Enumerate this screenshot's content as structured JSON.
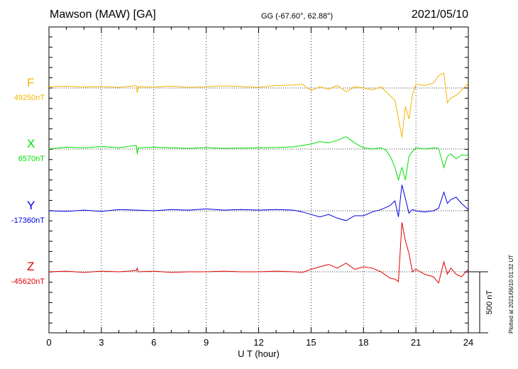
{
  "header": {
    "station": "Mawson (MAW)  [GA]",
    "coords": "GG (-67.60°,  62.88°)",
    "date": "2021/05/10",
    "plotted": "Plotted at 2021/06/10 01:32 UT"
  },
  "chart_data": {
    "type": "line",
    "xlabel": "U T (hour)",
    "xlim": [
      0,
      24
    ],
    "xticks": [
      0,
      3,
      6,
      9,
      12,
      15,
      18,
      21,
      24
    ],
    "scale_label": "500 nT",
    "scale_nT": 500,
    "series": [
      {
        "name": "F",
        "base_label": "49250nT",
        "color": "#f5b400",
        "slot": 0,
        "points": [
          [
            0,
            10
          ],
          [
            1,
            15
          ],
          [
            2,
            8
          ],
          [
            3,
            12
          ],
          [
            4,
            5
          ],
          [
            5,
            20
          ],
          [
            5.05,
            -40
          ],
          [
            5.1,
            10
          ],
          [
            6,
            8
          ],
          [
            7,
            15
          ],
          [
            8,
            5
          ],
          [
            9,
            10
          ],
          [
            10,
            18
          ],
          [
            11,
            12
          ],
          [
            12,
            5
          ],
          [
            13,
            20
          ],
          [
            14,
            25
          ],
          [
            14.5,
            30
          ],
          [
            15,
            -20
          ],
          [
            15.5,
            10
          ],
          [
            16,
            -10
          ],
          [
            16.5,
            20
          ],
          [
            17,
            -30
          ],
          [
            17.5,
            10
          ],
          [
            18,
            0
          ],
          [
            18.5,
            -15
          ],
          [
            19,
            10
          ],
          [
            19.5,
            -60
          ],
          [
            19.8,
            -100
          ],
          [
            20,
            -250
          ],
          [
            20.2,
            -400
          ],
          [
            20.4,
            -150
          ],
          [
            20.6,
            -250
          ],
          [
            20.8,
            -60
          ],
          [
            21,
            30
          ],
          [
            21.5,
            20
          ],
          [
            22,
            40
          ],
          [
            22.3,
            100
          ],
          [
            22.6,
            120
          ],
          [
            22.8,
            -120
          ],
          [
            23,
            -80
          ],
          [
            23.3,
            -60
          ],
          [
            23.6,
            -20
          ],
          [
            24,
            40
          ]
        ]
      },
      {
        "name": "X",
        "base_label": "6570nT",
        "color": "#00e000",
        "slot": 1,
        "points": [
          [
            0,
            0
          ],
          [
            1,
            15
          ],
          [
            2,
            10
          ],
          [
            3,
            20
          ],
          [
            4,
            10
          ],
          [
            5,
            30
          ],
          [
            5.05,
            -40
          ],
          [
            5.1,
            10
          ],
          [
            6,
            15
          ],
          [
            7,
            10
          ],
          [
            8,
            5
          ],
          [
            9,
            12
          ],
          [
            10,
            5
          ],
          [
            11,
            8
          ],
          [
            12,
            10
          ],
          [
            13,
            12
          ],
          [
            14,
            18
          ],
          [
            15,
            40
          ],
          [
            15.5,
            60
          ],
          [
            16,
            50
          ],
          [
            16.5,
            70
          ],
          [
            17,
            100
          ],
          [
            17.3,
            70
          ],
          [
            17.6,
            40
          ],
          [
            18,
            10
          ],
          [
            18.5,
            0
          ],
          [
            19,
            10
          ],
          [
            19.3,
            -10
          ],
          [
            19.6,
            -80
          ],
          [
            19.8,
            -150
          ],
          [
            20,
            -250
          ],
          [
            20.2,
            -150
          ],
          [
            20.4,
            -250
          ],
          [
            20.6,
            -60
          ],
          [
            20.8,
            -20
          ],
          [
            21,
            10
          ],
          [
            21.5,
            0
          ],
          [
            22,
            10
          ],
          [
            22.3,
            5
          ],
          [
            22.6,
            -150
          ],
          [
            22.8,
            -60
          ],
          [
            23,
            -40
          ],
          [
            23.3,
            -80
          ],
          [
            23.6,
            -50
          ],
          [
            24,
            -50
          ]
        ]
      },
      {
        "name": "Y",
        "base_label": "-17360nT",
        "color": "#0000e0",
        "slot": 2,
        "points": [
          [
            0,
            0
          ],
          [
            1,
            -5
          ],
          [
            2,
            5
          ],
          [
            3,
            -5
          ],
          [
            4,
            10
          ],
          [
            5,
            5
          ],
          [
            6,
            0
          ],
          [
            7,
            10
          ],
          [
            8,
            5
          ],
          [
            9,
            15
          ],
          [
            10,
            5
          ],
          [
            11,
            10
          ],
          [
            12,
            5
          ],
          [
            13,
            10
          ],
          [
            14,
            5
          ],
          [
            14.5,
            -10
          ],
          [
            15,
            -30
          ],
          [
            15.5,
            -50
          ],
          [
            16,
            -30
          ],
          [
            16.5,
            -60
          ],
          [
            17,
            -80
          ],
          [
            17.5,
            -40
          ],
          [
            18,
            -40
          ],
          [
            18.5,
            -10
          ],
          [
            19,
            10
          ],
          [
            19.5,
            40
          ],
          [
            19.8,
            80
          ],
          [
            20,
            -50
          ],
          [
            20.2,
            210
          ],
          [
            20.4,
            100
          ],
          [
            20.6,
            -20
          ],
          [
            20.8,
            10
          ],
          [
            21,
            0
          ],
          [
            21.5,
            -10
          ],
          [
            22,
            0
          ],
          [
            22.3,
            20
          ],
          [
            22.6,
            150
          ],
          [
            22.8,
            60
          ],
          [
            23,
            90
          ],
          [
            23.3,
            110
          ],
          [
            23.6,
            60
          ],
          [
            24,
            10
          ]
        ]
      },
      {
        "name": "Z",
        "base_label": "-45620nT",
        "color": "#e00000",
        "slot": 3,
        "points": [
          [
            0,
            0
          ],
          [
            1,
            5
          ],
          [
            2,
            -5
          ],
          [
            3,
            5
          ],
          [
            4,
            0
          ],
          [
            5,
            10
          ],
          [
            5.05,
            30
          ],
          [
            5.1,
            0
          ],
          [
            6,
            5
          ],
          [
            7,
            -5
          ],
          [
            8,
            0
          ],
          [
            9,
            0
          ],
          [
            10,
            5
          ],
          [
            11,
            0
          ],
          [
            12,
            0
          ],
          [
            13,
            5
          ],
          [
            14,
            0
          ],
          [
            14.5,
            -5
          ],
          [
            15,
            20
          ],
          [
            15.5,
            40
          ],
          [
            16,
            60
          ],
          [
            16.5,
            30
          ],
          [
            17,
            70
          ],
          [
            17.5,
            20
          ],
          [
            18,
            40
          ],
          [
            18.5,
            30
          ],
          [
            19,
            0
          ],
          [
            19.5,
            -50
          ],
          [
            19.8,
            -60
          ],
          [
            20,
            -80
          ],
          [
            20.2,
            400
          ],
          [
            20.4,
            250
          ],
          [
            20.6,
            150
          ],
          [
            20.8,
            0
          ],
          [
            21,
            20
          ],
          [
            21.5,
            -20
          ],
          [
            22,
            -40
          ],
          [
            22.3,
            -90
          ],
          [
            22.6,
            80
          ],
          [
            22.8,
            -20
          ],
          [
            23,
            30
          ],
          [
            23.3,
            -20
          ],
          [
            23.6,
            -40
          ],
          [
            24,
            20
          ]
        ]
      }
    ]
  }
}
